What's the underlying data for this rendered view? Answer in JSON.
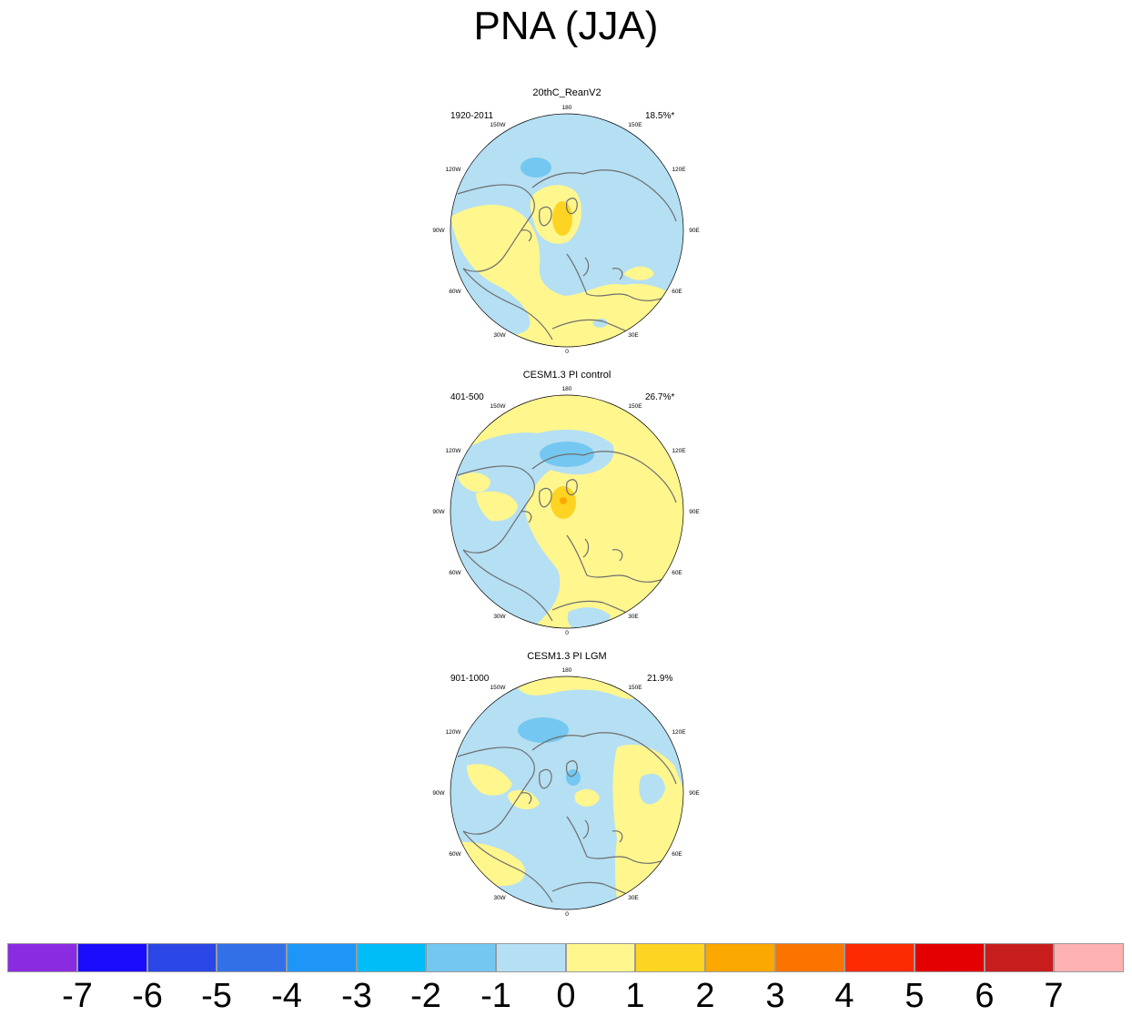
{
  "title": "PNA (JJA)",
  "panels": [
    {
      "name": "20thC_ReanV2",
      "period": "1920-2011",
      "variance": "18.5%*"
    },
    {
      "name": "CESM1.3 PI control",
      "period": "401-500",
      "variance": "26.7%*"
    },
    {
      "name": "CESM1.3 PI LGM",
      "period": "901-1000",
      "variance": "21.9%"
    }
  ],
  "longitude_labels": [
    "180",
    "150E",
    "120E",
    "90E",
    "60E",
    "30E",
    "0",
    "30W",
    "60W",
    "90W",
    "120W",
    "150W"
  ],
  "colorbar": {
    "labels": [
      "-7",
      "-6",
      "-5",
      "-4",
      "-3",
      "-2",
      "-1",
      "0",
      "1",
      "2",
      "3",
      "4",
      "5",
      "6",
      "7"
    ],
    "colors": [
      "#8a2be2",
      "#1a0dfb",
      "#2a46e6",
      "#3270e8",
      "#1e96f8",
      "#00bdf8",
      "#74c7f0",
      "#b5dff3",
      "#fff68e",
      "#fdd422",
      "#fba800",
      "#fb7400",
      "#fb2a00",
      "#e50000",
      "#c81d1d",
      "#fdb1b1"
    ]
  },
  "colors": {
    "light_blue": "#b5dff3",
    "mid_blue": "#74c7f0",
    "light_yellow": "#fff68e",
    "gold": "#fdd422",
    "orange": "#fba800",
    "coast": "#6e6e6e"
  }
}
